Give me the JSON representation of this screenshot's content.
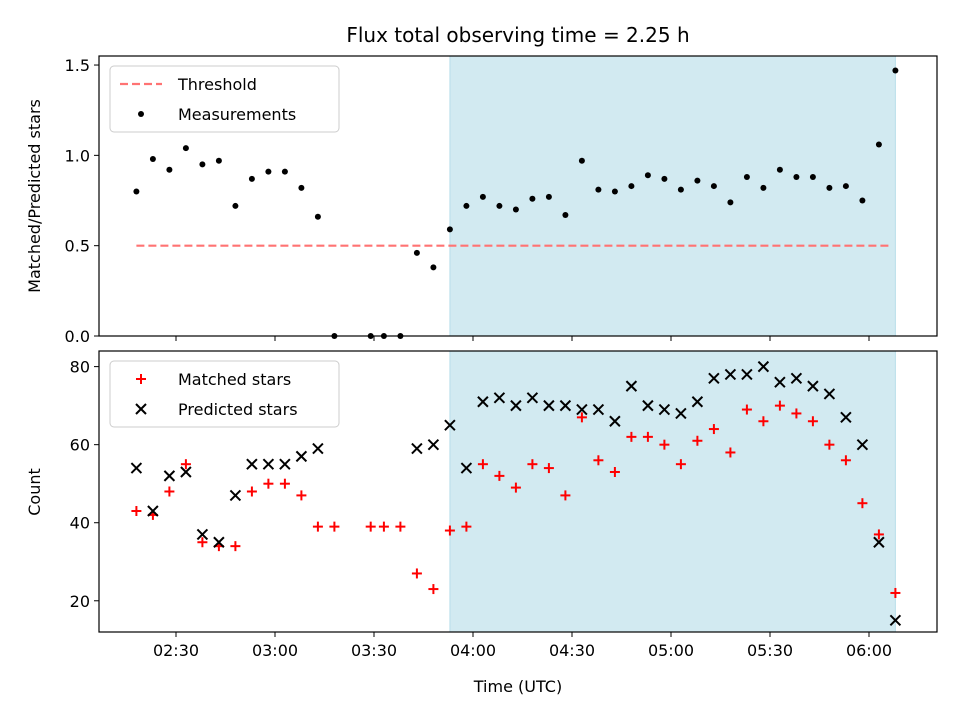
{
  "chart_data": {
    "title": "Flux total observing time = 2.25 h",
    "xlabel": "Time (UTC)",
    "x_ticks": [
      "02:30",
      "03:00",
      "03:30",
      "04:00",
      "04:30",
      "05:00",
      "05:30",
      "06:00"
    ],
    "highlight_span": {
      "start": "03:53",
      "end": "06:08",
      "color": "#add8e6"
    },
    "panels": [
      {
        "type": "scatter",
        "ylabel": "Matched/Predicted stars",
        "ylim": [
          0,
          1.55
        ],
        "y_ticks": [
          "0.0",
          "0.5",
          "1.0",
          "1.5"
        ],
        "legend": {
          "position": "top-left",
          "entries": [
            "Threshold",
            "Measurements"
          ]
        },
        "threshold": {
          "name": "Threshold",
          "value": 0.5,
          "x_start": "02:18",
          "x_end": "06:07",
          "color": "#ff7373",
          "style": "dashed"
        },
        "series": [
          {
            "name": "Measurements",
            "color": "#000000",
            "marker": "dot",
            "points": [
              [
                "02:18",
                0.8
              ],
              [
                "02:23",
                0.98
              ],
              [
                "02:28",
                0.92
              ],
              [
                "02:33",
                1.04
              ],
              [
                "02:38",
                0.95
              ],
              [
                "02:43",
                0.97
              ],
              [
                "02:48",
                0.72
              ],
              [
                "02:53",
                0.87
              ],
              [
                "02:58",
                0.91
              ],
              [
                "03:03",
                0.91
              ],
              [
                "03:08",
                0.82
              ],
              [
                "03:13",
                0.66
              ],
              [
                "03:18",
                0.0
              ],
              [
                "03:29",
                0.0
              ],
              [
                "03:33",
                0.0
              ],
              [
                "03:38",
                0.0
              ],
              [
                "03:43",
                0.46
              ],
              [
                "03:48",
                0.38
              ],
              [
                "03:53",
                0.59
              ],
              [
                "03:58",
                0.72
              ],
              [
                "04:03",
                0.77
              ],
              [
                "04:08",
                0.72
              ],
              [
                "04:13",
                0.7
              ],
              [
                "04:18",
                0.76
              ],
              [
                "04:23",
                0.77
              ],
              [
                "04:28",
                0.67
              ],
              [
                "04:33",
                0.97
              ],
              [
                "04:38",
                0.81
              ],
              [
                "04:43",
                0.8
              ],
              [
                "04:48",
                0.83
              ],
              [
                "04:53",
                0.89
              ],
              [
                "04:58",
                0.87
              ],
              [
                "05:03",
                0.81
              ],
              [
                "05:08",
                0.86
              ],
              [
                "05:13",
                0.83
              ],
              [
                "05:18",
                0.74
              ],
              [
                "05:23",
                0.88
              ],
              [
                "05:28",
                0.82
              ],
              [
                "05:33",
                0.92
              ],
              [
                "05:38",
                0.88
              ],
              [
                "05:43",
                0.88
              ],
              [
                "05:48",
                0.82
              ],
              [
                "05:53",
                0.83
              ],
              [
                "05:58",
                0.75
              ],
              [
                "06:03",
                1.06
              ],
              [
                "06:08",
                1.47
              ]
            ]
          }
        ]
      },
      {
        "type": "scatter",
        "ylabel": "Count",
        "ylim": [
          12,
          84
        ],
        "y_ticks": [
          "20",
          "40",
          "60",
          "80"
        ],
        "legend": {
          "position": "top-left",
          "entries": [
            "Matched stars",
            "Predicted stars"
          ]
        },
        "series": [
          {
            "name": "Matched stars",
            "color": "#ff0000",
            "marker": "plus",
            "points": [
              [
                "02:18",
                43
              ],
              [
                "02:23",
                42
              ],
              [
                "02:28",
                48
              ],
              [
                "02:33",
                55
              ],
              [
                "02:38",
                35
              ],
              [
                "02:43",
                34
              ],
              [
                "02:48",
                34
              ],
              [
                "02:53",
                48
              ],
              [
                "02:58",
                50
              ],
              [
                "03:03",
                50
              ],
              [
                "03:08",
                47
              ],
              [
                "03:13",
                39
              ],
              [
                "03:18",
                39
              ],
              [
                "03:29",
                39
              ],
              [
                "03:33",
                39
              ],
              [
                "03:38",
                39
              ],
              [
                "03:43",
                27
              ],
              [
                "03:48",
                23
              ],
              [
                "03:53",
                38
              ],
              [
                "03:58",
                39
              ],
              [
                "04:03",
                55
              ],
              [
                "04:08",
                52
              ],
              [
                "04:13",
                49
              ],
              [
                "04:18",
                55
              ],
              [
                "04:23",
                54
              ],
              [
                "04:28",
                47
              ],
              [
                "04:33",
                67
              ],
              [
                "04:38",
                56
              ],
              [
                "04:43",
                53
              ],
              [
                "04:48",
                62
              ],
              [
                "04:53",
                62
              ],
              [
                "04:58",
                60
              ],
              [
                "05:03",
                55
              ],
              [
                "05:08",
                61
              ],
              [
                "05:13",
                64
              ],
              [
                "05:18",
                58
              ],
              [
                "05:23",
                69
              ],
              [
                "05:28",
                66
              ],
              [
                "05:33",
                70
              ],
              [
                "05:38",
                68
              ],
              [
                "05:43",
                66
              ],
              [
                "05:48",
                60
              ],
              [
                "05:53",
                56
              ],
              [
                "05:58",
                45
              ],
              [
                "06:03",
                37
              ],
              [
                "06:08",
                22
              ]
            ]
          },
          {
            "name": "Predicted stars",
            "color": "#000000",
            "marker": "x",
            "points": [
              [
                "02:18",
                54
              ],
              [
                "02:23",
                43
              ],
              [
                "02:28",
                52
              ],
              [
                "02:33",
                53
              ],
              [
                "02:38",
                37
              ],
              [
                "02:43",
                35
              ],
              [
                "02:48",
                47
              ],
              [
                "02:53",
                55
              ],
              [
                "02:58",
                55
              ],
              [
                "03:03",
                55
              ],
              [
                "03:08",
                57
              ],
              [
                "03:13",
                59
              ],
              [
                "03:43",
                59
              ],
              [
                "03:48",
                60
              ],
              [
                "03:53",
                65
              ],
              [
                "03:58",
                54
              ],
              [
                "04:03",
                71
              ],
              [
                "04:08",
                72
              ],
              [
                "04:13",
                70
              ],
              [
                "04:18",
                72
              ],
              [
                "04:23",
                70
              ],
              [
                "04:28",
                70
              ],
              [
                "04:33",
                69
              ],
              [
                "04:38",
                69
              ],
              [
                "04:43",
                66
              ],
              [
                "04:48",
                75
              ],
              [
                "04:53",
                70
              ],
              [
                "04:58",
                69
              ],
              [
                "05:03",
                68
              ],
              [
                "05:08",
                71
              ],
              [
                "05:13",
                77
              ],
              [
                "05:18",
                78
              ],
              [
                "05:23",
                78
              ],
              [
                "05:28",
                80
              ],
              [
                "05:33",
                76
              ],
              [
                "05:38",
                77
              ],
              [
                "05:43",
                75
              ],
              [
                "05:48",
                73
              ],
              [
                "05:53",
                67
              ],
              [
                "05:58",
                60
              ],
              [
                "06:03",
                35
              ],
              [
                "06:08",
                15
              ]
            ]
          }
        ]
      }
    ]
  }
}
